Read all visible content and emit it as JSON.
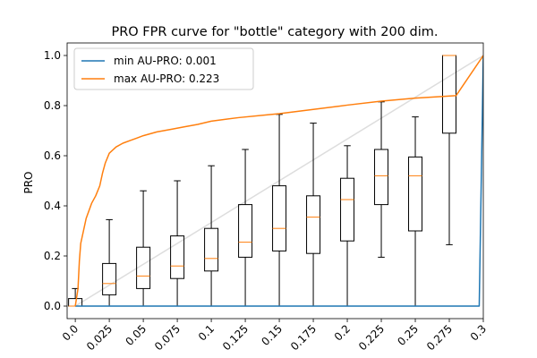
{
  "chart_data": {
    "type": "line",
    "title": "PRO FPR curve for \"bottle\" category with 200 dim.",
    "xlabel": "",
    "ylabel": "PRO",
    "xlim": [
      -0.006,
      0.3
    ],
    "ylim": [
      -0.05,
      1.05
    ],
    "x_ticks": [
      0.0,
      0.025,
      0.05,
      0.075,
      0.1,
      0.125,
      0.15,
      0.175,
      0.2,
      0.225,
      0.25,
      0.275,
      0.3
    ],
    "x_tick_labels": [
      "0.0",
      "0.025",
      "0.05",
      "0.075",
      "0.1",
      "0.125",
      "0.15",
      "0.175",
      "0.2",
      "0.225",
      "0.25",
      "0.275",
      "0.3"
    ],
    "y_ticks": [
      0.0,
      0.2,
      0.4,
      0.6,
      0.8,
      1.0
    ],
    "y_tick_labels": [
      "0.0",
      "0.2",
      "0.4",
      "0.6",
      "0.8",
      "1.0"
    ],
    "grid": false,
    "legend_position": "top-left",
    "series": [
      {
        "name": "min AU-PRO: 0.001",
        "color": "#1f77b4",
        "x": [
          0.0,
          0.297,
          0.3
        ],
        "y": [
          0.0,
          0.0,
          1.0
        ]
      },
      {
        "name": "max AU-PRO: 0.223",
        "color": "#ff7f0e",
        "x": [
          0.0,
          0.002,
          0.003,
          0.004,
          0.006,
          0.008,
          0.01,
          0.012,
          0.015,
          0.018,
          0.02,
          0.022,
          0.025,
          0.03,
          0.035,
          0.04,
          0.045,
          0.05,
          0.06,
          0.07,
          0.08,
          0.09,
          0.1,
          0.12,
          0.15,
          0.175,
          0.2,
          0.225,
          0.25,
          0.265,
          0.28,
          0.3
        ],
        "y": [
          0.0,
          0.07,
          0.18,
          0.25,
          0.3,
          0.35,
          0.38,
          0.41,
          0.44,
          0.48,
          0.53,
          0.57,
          0.61,
          0.635,
          0.65,
          0.66,
          0.67,
          0.68,
          0.695,
          0.705,
          0.715,
          0.725,
          0.738,
          0.752,
          0.768,
          0.785,
          0.802,
          0.818,
          0.83,
          0.835,
          0.84,
          1.0
        ]
      }
    ],
    "diagonal": {
      "color": "#dddddd",
      "x": [
        0.0,
        0.3
      ],
      "y": [
        0.0,
        1.0
      ]
    },
    "boxplots": {
      "box_color": "#000000",
      "median_color": "#ff7f0e",
      "items": [
        {
          "x": 0.0,
          "whisker_low": 0.0,
          "q1": 0.0,
          "median": 0.0,
          "q3": 0.03,
          "whisker_high": 0.07
        },
        {
          "x": 0.025,
          "whisker_low": 0.0,
          "q1": 0.045,
          "median": 0.09,
          "q3": 0.17,
          "whisker_high": 0.345
        },
        {
          "x": 0.05,
          "whisker_low": 0.0,
          "q1": 0.07,
          "median": 0.12,
          "q3": 0.235,
          "whisker_high": 0.46
        },
        {
          "x": 0.075,
          "whisker_low": 0.0,
          "q1": 0.11,
          "median": 0.16,
          "q3": 0.28,
          "whisker_high": 0.5
        },
        {
          "x": 0.1,
          "whisker_low": 0.0,
          "q1": 0.14,
          "median": 0.19,
          "q3": 0.31,
          "whisker_high": 0.56
        },
        {
          "x": 0.125,
          "whisker_low": 0.0,
          "q1": 0.195,
          "median": 0.255,
          "q3": 0.405,
          "whisker_high": 0.625
        },
        {
          "x": 0.15,
          "whisker_low": 0.0,
          "q1": 0.22,
          "median": 0.31,
          "q3": 0.48,
          "whisker_high": 0.765
        },
        {
          "x": 0.175,
          "whisker_low": 0.0,
          "q1": 0.21,
          "median": 0.355,
          "q3": 0.44,
          "whisker_high": 0.73
        },
        {
          "x": 0.2,
          "whisker_low": 0.0,
          "q1": 0.26,
          "median": 0.425,
          "q3": 0.51,
          "whisker_high": 0.64
        },
        {
          "x": 0.225,
          "whisker_low": 0.195,
          "q1": 0.405,
          "median": 0.52,
          "q3": 0.625,
          "whisker_high": 0.815
        },
        {
          "x": 0.25,
          "whisker_low": 0.0,
          "q1": 0.3,
          "median": 0.52,
          "q3": 0.595,
          "whisker_high": 0.755
        },
        {
          "x": 0.275,
          "whisker_low": 0.245,
          "q1": 0.69,
          "median": 1.0,
          "q3": 1.0,
          "whisker_high": 1.0
        }
      ]
    }
  }
}
